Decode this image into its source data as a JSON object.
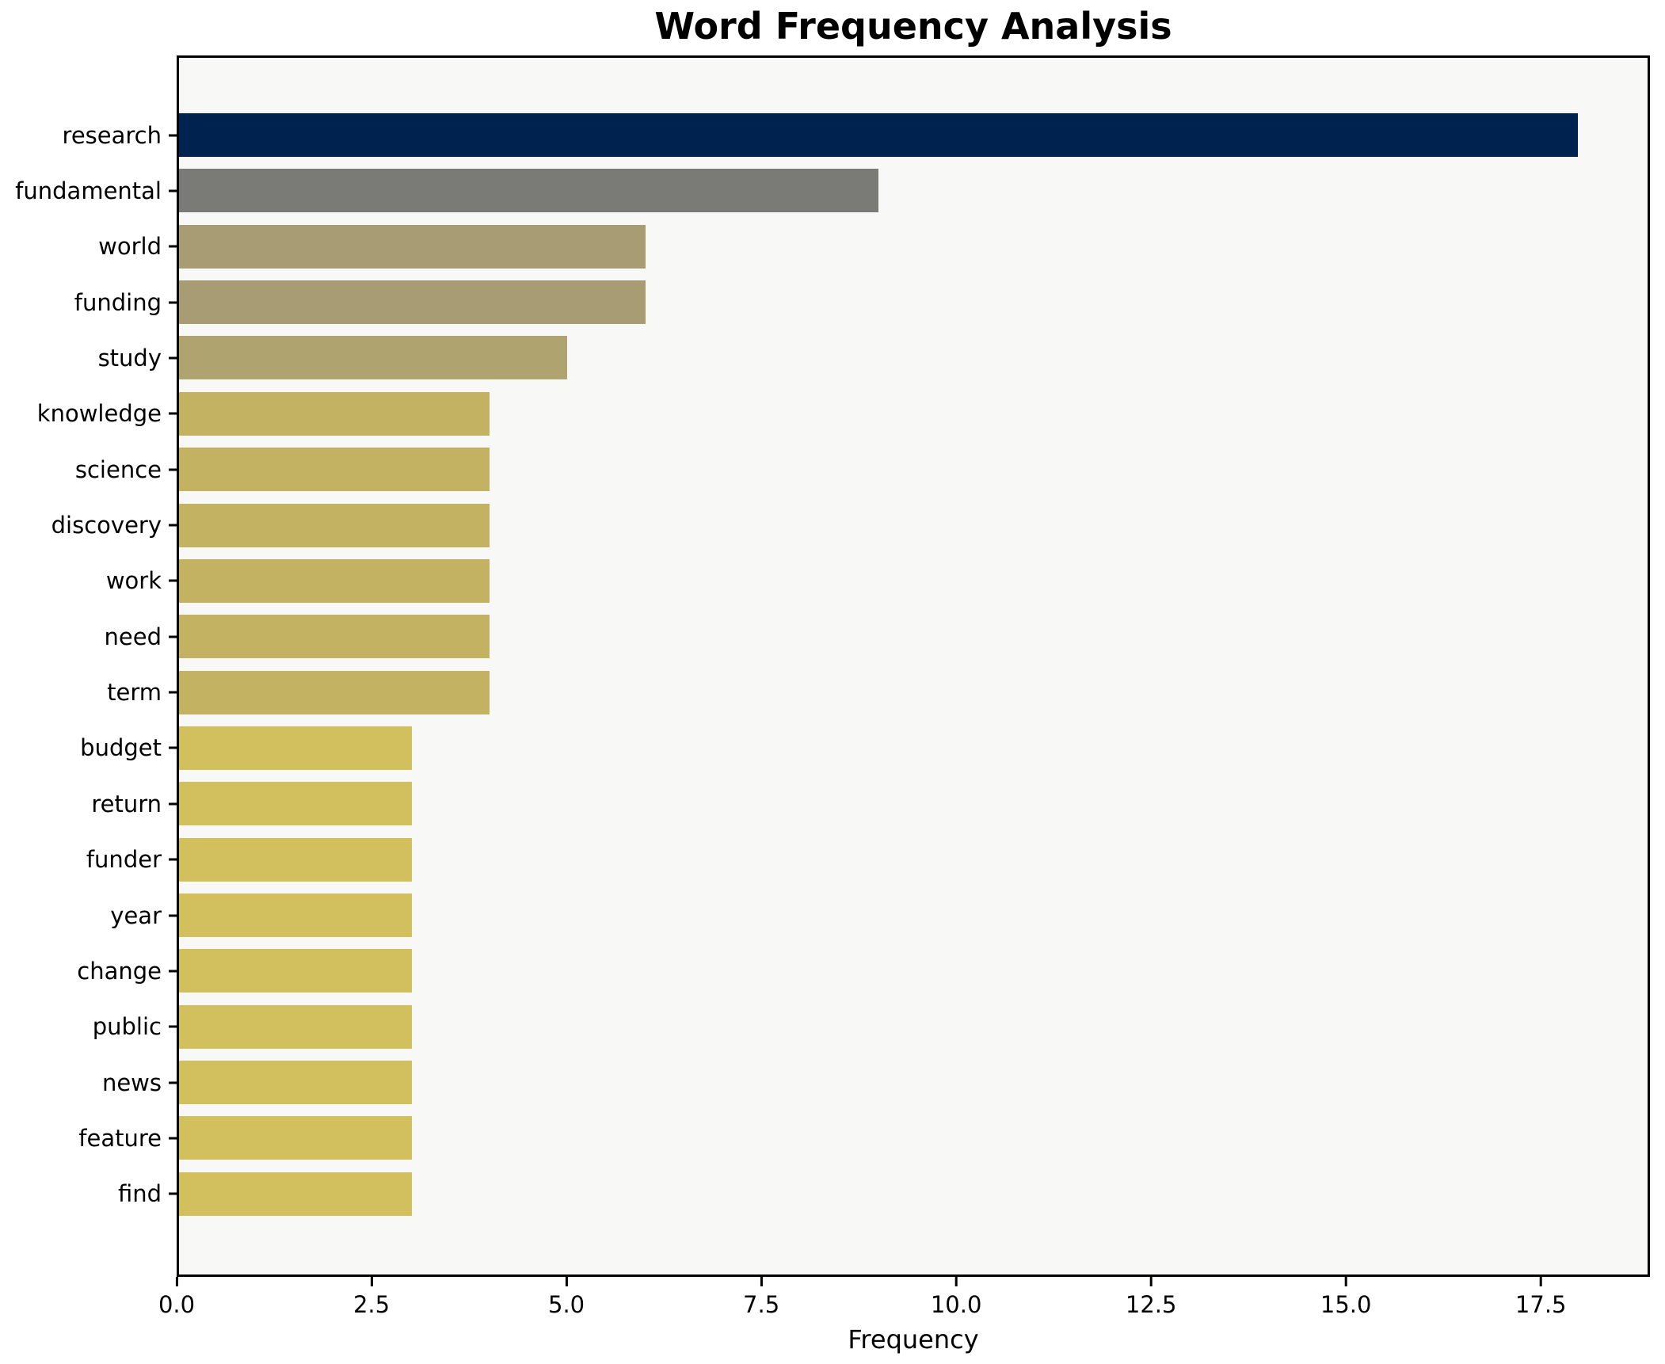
{
  "chart_data": {
    "type": "bar",
    "orientation": "horizontal",
    "title": "Word Frequency Analysis",
    "xlabel": "Frequency",
    "ylabel": "",
    "xlim": [
      0,
      18.9
    ],
    "grid": false,
    "legend": "none",
    "plot_background": "#F8F8F6",
    "figure_background": "#FFFFFF",
    "spine_color": "#000000",
    "categories": [
      "research",
      "fundamental",
      "world",
      "funding",
      "study",
      "knowledge",
      "science",
      "discovery",
      "work",
      "need",
      "term",
      "budget",
      "return",
      "funder",
      "year",
      "change",
      "public",
      "news",
      "feature",
      "find"
    ],
    "values": [
      18,
      9,
      6,
      6,
      5,
      4,
      4,
      4,
      4,
      4,
      4,
      3,
      3,
      3,
      3,
      3,
      3,
      3,
      3,
      3
    ],
    "bar_colors": [
      "#00224E",
      "#7A7A76",
      "#A79C74",
      "#A79C74",
      "#AFA370",
      "#C2B262",
      "#C2B262",
      "#C2B262",
      "#C2B262",
      "#C2B262",
      "#C2B262",
      "#D2C05F",
      "#D2C05F",
      "#D2C05F",
      "#D2C05F",
      "#D2C05F",
      "#D2C05F",
      "#D2C05F",
      "#D2C05F",
      "#D2C05F"
    ],
    "x_ticks": [
      {
        "value": 0,
        "label": "0.0"
      },
      {
        "value": 2.5,
        "label": "2.5"
      },
      {
        "value": 5,
        "label": "5.0"
      },
      {
        "value": 7.5,
        "label": "7.5"
      },
      {
        "value": 10,
        "label": "10.0"
      },
      {
        "value": 12.5,
        "label": "12.5"
      },
      {
        "value": 15,
        "label": "15.0"
      },
      {
        "value": 17.5,
        "label": "17.5"
      }
    ]
  }
}
